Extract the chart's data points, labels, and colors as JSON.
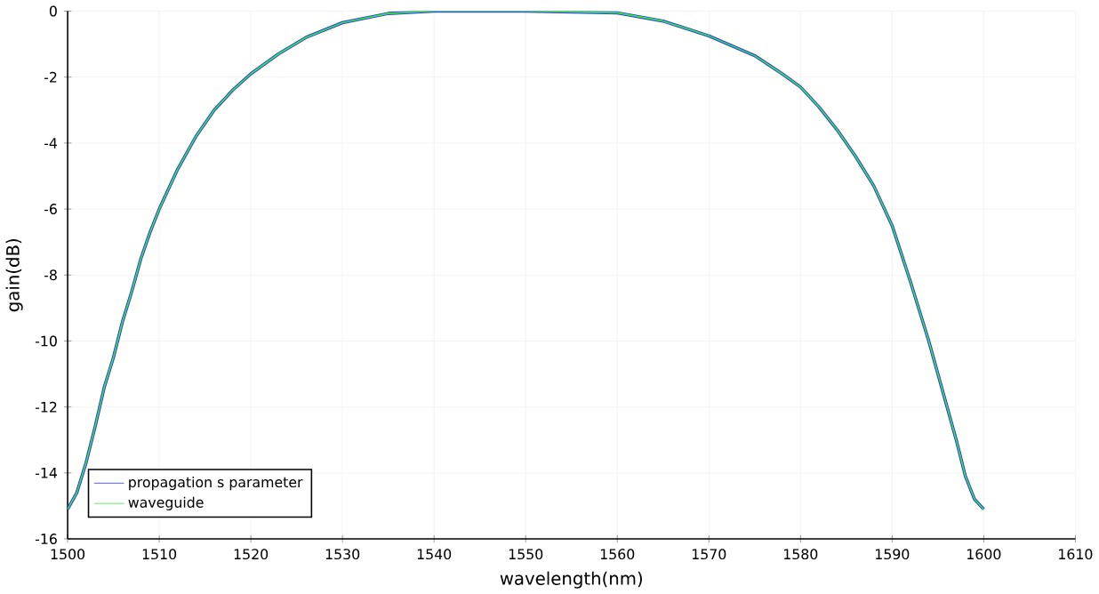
{
  "chart_data": {
    "type": "line",
    "xlabel": "wavelength(nm)",
    "ylabel": "gain(dB)",
    "x": [
      1500,
      1501,
      1502,
      1503,
      1504,
      1505,
      1506,
      1507,
      1508,
      1509,
      1510,
      1512,
      1514,
      1516,
      1518,
      1520,
      1523,
      1526,
      1530,
      1535,
      1540,
      1550,
      1560,
      1565,
      1570,
      1575,
      1578,
      1580,
      1582,
      1584,
      1586,
      1588,
      1590,
      1592,
      1594,
      1596,
      1597,
      1598,
      1599,
      1600
    ],
    "series": [
      {
        "name": "propagation s parameter",
        "color": "#3333ff",
        "values": [
          -15.1,
          -14.6,
          -13.7,
          -12.6,
          -11.4,
          -10.5,
          -9.4,
          -8.5,
          -7.5,
          -6.7,
          -6.0,
          -4.8,
          -3.8,
          -3.0,
          -2.4,
          -1.9,
          -1.3,
          -0.8,
          -0.35,
          -0.07,
          0,
          0,
          -0.05,
          -0.3,
          -0.75,
          -1.35,
          -1.9,
          -2.3,
          -2.9,
          -3.6,
          -4.4,
          -5.3,
          -6.5,
          -8.2,
          -10.0,
          -12.0,
          -13.0,
          -14.1,
          -14.8,
          -15.1
        ]
      },
      {
        "name": "waveguide",
        "color": "#33ee33",
        "values": [
          -15.1,
          -14.6,
          -13.7,
          -12.6,
          -11.4,
          -10.5,
          -9.4,
          -8.5,
          -7.5,
          -6.7,
          -6.0,
          -4.8,
          -3.8,
          -3.0,
          -2.4,
          -1.9,
          -1.3,
          -0.8,
          -0.35,
          -0.07,
          0,
          0,
          -0.05,
          -0.3,
          -0.75,
          -1.35,
          -1.9,
          -2.3,
          -2.9,
          -3.6,
          -4.4,
          -5.3,
          -6.5,
          -8.2,
          -10.0,
          -12.0,
          -13.0,
          -14.1,
          -14.8,
          -15.1
        ]
      }
    ],
    "xlim": [
      1500,
      1610
    ],
    "xticks": [
      1500,
      1510,
      1520,
      1530,
      1540,
      1550,
      1560,
      1570,
      1580,
      1590,
      1600,
      1610
    ],
    "ylim": [
      -16,
      0
    ],
    "yticks": [
      -16,
      -14,
      -12,
      -10,
      -8,
      -6,
      -4,
      -2,
      0
    ],
    "grid": true,
    "legend": "bottom left",
    "marker": "none",
    "line_style": "solid"
  }
}
